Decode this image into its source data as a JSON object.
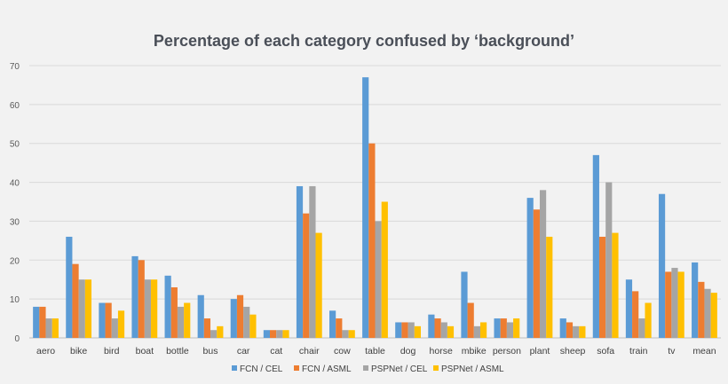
{
  "chart_data": {
    "type": "bar",
    "title": "Percentage of each category confused by ‘background’",
    "xlabel": "",
    "ylabel": "",
    "ylim": [
      0,
      70
    ],
    "yticks": [
      "0",
      "10",
      "20",
      "30",
      "40",
      "50",
      "60",
      "70"
    ],
    "grid": true,
    "legend_position": "bottom",
    "categories": [
      "aero",
      "bike",
      "bird",
      "boat",
      "bottle",
      "bus",
      "car",
      "cat",
      "chair",
      "cow",
      "table",
      "dog",
      "horse",
      "mbike",
      "person",
      "plant",
      "sheep",
      "sofa",
      "train",
      "tv",
      "mean"
    ],
    "series": [
      {
        "name": "FCN / CEL",
        "color": "#5b9bd5",
        "values": [
          8,
          26,
          9,
          21,
          16,
          11,
          10,
          2,
          39,
          7,
          67,
          4,
          6,
          17,
          5,
          36,
          5,
          47,
          15,
          37,
          19.4
        ]
      },
      {
        "name": "FCN / ASML",
        "color": "#ed7d31",
        "values": [
          8,
          19,
          9,
          20,
          13,
          5,
          11,
          2,
          32,
          5,
          50,
          4,
          5,
          9,
          5,
          33,
          4,
          26,
          12,
          17,
          14.4
        ]
      },
      {
        "name": "PSPNet / CEL",
        "color": "#a5a5a5",
        "values": [
          5,
          15,
          5,
          15,
          8,
          2,
          8,
          2,
          39,
          2,
          30,
          4,
          4,
          3,
          4,
          38,
          3,
          40,
          5,
          18,
          12.6
        ]
      },
      {
        "name": "PSPNet / ASML",
        "color": "#ffc000",
        "values": [
          5,
          15,
          7,
          15,
          9,
          3,
          6,
          2,
          27,
          2,
          35,
          3,
          3,
          4,
          5,
          26,
          3,
          27,
          9,
          17,
          11.6
        ]
      }
    ]
  }
}
